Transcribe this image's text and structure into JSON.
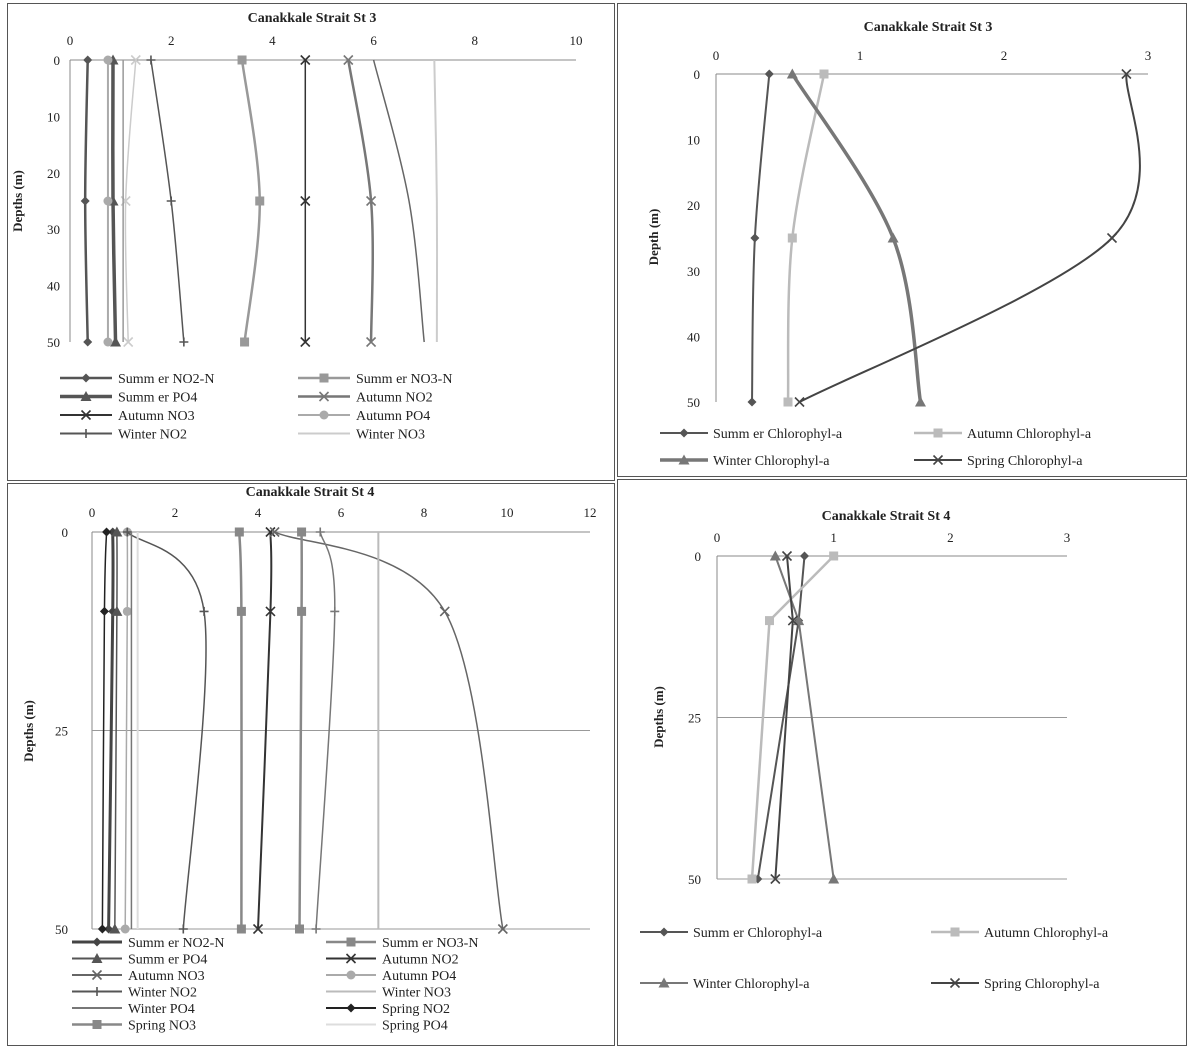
{
  "chart_data": [
    {
      "type": "line",
      "title": "Canakkale Strait St 3",
      "xlabel": "",
      "ylabel": "Depths (m)",
      "xlim": [
        0,
        10
      ],
      "ylim": [
        0,
        50
      ],
      "x_ticks": [
        0,
        2,
        4,
        6,
        8,
        10
      ],
      "y_ticks": [
        0,
        10,
        20,
        30,
        40,
        50
      ],
      "grid": false,
      "legend": "bottom",
      "depths": [
        0,
        25,
        50
      ],
      "series": [
        {
          "name": "Summ er NO2-N",
          "values": [
            0.35,
            0.3,
            0.35
          ],
          "marker": "diamond",
          "color": "#555555",
          "width": 2.5
        },
        {
          "name": "Summ er NO3-N",
          "values": [
            3.4,
            3.75,
            3.45
          ],
          "marker": "square",
          "color": "#999999",
          "width": 2.5
        },
        {
          "name": "Summ er PO4",
          "values": [
            0.85,
            0.85,
            0.9
          ],
          "marker": "triangle",
          "color": "#555555",
          "width": 3.5
        },
        {
          "name": "Autumn NO2",
          "values": [
            5.5,
            5.95,
            5.95
          ],
          "marker": "x",
          "color": "#777777",
          "width": 2.5
        },
        {
          "name": "Autumn NO3",
          "values": [
            4.65,
            4.65,
            4.65
          ],
          "marker": "x",
          "color": "#333333",
          "width": 1.5
        },
        {
          "name": "Autumn PO4",
          "values": [
            0.75,
            0.75,
            0.75
          ],
          "marker": "circle",
          "color": "#aaaaaa",
          "width": 2
        },
        {
          "name": "Winter NO2",
          "values": [
            1.6,
            2.0,
            2.25
          ],
          "marker": "plus",
          "color": "#555555",
          "width": 1.5
        },
        {
          "name": "Winter NO3",
          "values": [
            7.2,
            7.25,
            7.25
          ],
          "marker": "none",
          "color": "#cccccc",
          "width": 2
        },
        {
          "name": "",
          "values": [
            6.0,
            6.7,
            7.0
          ],
          "marker": "none",
          "color": "#666666",
          "width": 1.5
        },
        {
          "name": "",
          "values": [
            1.3,
            1.1,
            1.15
          ],
          "marker": "x",
          "color": "#cccccc",
          "width": 1.5
        },
        {
          "name": "",
          "values": [
            1.05,
            1.05,
            1.05
          ],
          "marker": "none",
          "color": "#999999",
          "width": 1.5
        }
      ],
      "legend_entries": [
        "Summ er NO2-N",
        "Summ er NO3-N",
        "Summ er PO4",
        "Autumn NO2",
        "Autumn NO3",
        "Autumn PO4",
        "Winter NO2",
        "Winter NO3"
      ]
    },
    {
      "type": "line",
      "title": "Canakkale Strait St 3",
      "xlabel": "",
      "ylabel": "Depth (m)",
      "xlim": [
        0,
        3
      ],
      "ylim": [
        0,
        50
      ],
      "x_ticks": [
        0,
        1,
        2,
        3
      ],
      "y_ticks": [
        0,
        10,
        20,
        30,
        40,
        50
      ],
      "grid": false,
      "legend": "bottom",
      "depths": [
        0,
        25,
        50
      ],
      "series": [
        {
          "name": "Summ er Chlorophyl-a",
          "values": [
            0.37,
            0.27,
            0.25
          ],
          "marker": "diamond",
          "color": "#555555",
          "width": 2
        },
        {
          "name": "Autumn Chlorophyl-a",
          "values": [
            0.75,
            0.53,
            0.5
          ],
          "marker": "square",
          "color": "#bbbbbb",
          "width": 2.5
        },
        {
          "name": "Winter Chlorophyl-a",
          "values": [
            0.53,
            1.23,
            1.42
          ],
          "marker": "triangle",
          "color": "#777777",
          "width": 3.5
        },
        {
          "name": "Spring Chlorophyl-a",
          "values": [
            2.85,
            2.75,
            0.58
          ],
          "marker": "x",
          "color": "#444444",
          "width": 2
        }
      ]
    },
    {
      "type": "line",
      "title": "Canakkale Strait St 4",
      "xlabel": "",
      "ylabel": "Depths (m)",
      "xlim": [
        0,
        12
      ],
      "ylim": [
        0,
        50
      ],
      "x_ticks": [
        0,
        2,
        4,
        6,
        8,
        10,
        12
      ],
      "y_ticks": [
        0,
        25,
        50
      ],
      "grid": true,
      "legend": "bottom",
      "depths": [
        0,
        10,
        50
      ],
      "series": [
        {
          "name": "Summ er NO2-N",
          "values": [
            0.5,
            0.5,
            0.4
          ],
          "marker": "diamond",
          "color": "#444444",
          "width": 3
        },
        {
          "name": "Summ er NO3-N",
          "values": [
            3.55,
            3.6,
            3.6
          ],
          "marker": "square",
          "color": "#888888",
          "width": 2.5
        },
        {
          "name": "Summ er PO4",
          "values": [
            0.6,
            0.6,
            0.55
          ],
          "marker": "triangle",
          "color": "#555555",
          "width": 1.5
        },
        {
          "name": "Autumn NO2",
          "values": [
            4.3,
            4.3,
            4.0
          ],
          "marker": "x",
          "color": "#333333",
          "width": 2
        },
        {
          "name": "Autumn NO3",
          "values": [
            4.4,
            8.5,
            9.9
          ],
          "marker": "x",
          "color": "#666666",
          "width": 1.5
        },
        {
          "name": "Autumn PO4",
          "values": [
            0.85,
            0.85,
            0.8
          ],
          "marker": "circle",
          "color": "#aaaaaa",
          "width": 1.5
        },
        {
          "name": "Winter NO2",
          "values": [
            0.85,
            2.7,
            2.2
          ],
          "marker": "plus",
          "color": "#555555",
          "width": 1.5
        },
        {
          "name": "Winter NO3",
          "values": [
            6.9,
            6.9,
            6.9
          ],
          "marker": "none",
          "color": "#bbbbbb",
          "width": 2
        },
        {
          "name": "Winter PO4",
          "values": [
            0.95,
            0.95,
            0.95
          ],
          "marker": "none",
          "color": "#777777",
          "width": 1.5
        },
        {
          "name": "Spring NO2",
          "values": [
            0.35,
            0.3,
            0.25
          ],
          "marker": "diamond",
          "color": "#222222",
          "width": 1.5
        },
        {
          "name": "Spring NO3",
          "values": [
            5.05,
            5.05,
            5.0
          ],
          "marker": "square",
          "color": "#888888",
          "width": 2.5
        },
        {
          "name": "Spring PO4",
          "values": [
            1.1,
            1.1,
            1.1
          ],
          "marker": "none",
          "color": "#dddddd",
          "width": 2
        },
        {
          "name": "",
          "values": [
            5.5,
            5.85,
            5.4
          ],
          "marker": "plus",
          "color": "#777777",
          "width": 1.5
        }
      ]
    },
    {
      "type": "line",
      "title": "Canakkale Strait St 4",
      "xlabel": "",
      "ylabel": "Depths (m)",
      "xlim": [
        0,
        3
      ],
      "ylim": [
        0,
        50
      ],
      "x_ticks": [
        0,
        1,
        2,
        3
      ],
      "y_ticks": [
        0,
        25,
        50
      ],
      "grid": true,
      "legend": "bottom",
      "depths": [
        0,
        10,
        50
      ],
      "series": [
        {
          "name": "Summ er Chlorophyl-a",
          "values": [
            0.75,
            0.7,
            0.35
          ],
          "marker": "diamond",
          "color": "#555555",
          "width": 2
        },
        {
          "name": "Autumn Chlorophyl-a",
          "values": [
            1.0,
            0.45,
            0.3
          ],
          "marker": "square",
          "color": "#bbbbbb",
          "width": 2.5
        },
        {
          "name": "Winter Chlorophyl-a",
          "values": [
            0.5,
            0.7,
            1.0
          ],
          "marker": "triangle",
          "color": "#777777",
          "width": 2
        },
        {
          "name": "Spring Chlorophyl-a",
          "values": [
            0.6,
            0.65,
            0.5
          ],
          "marker": "x",
          "color": "#444444",
          "width": 2
        }
      ]
    }
  ]
}
